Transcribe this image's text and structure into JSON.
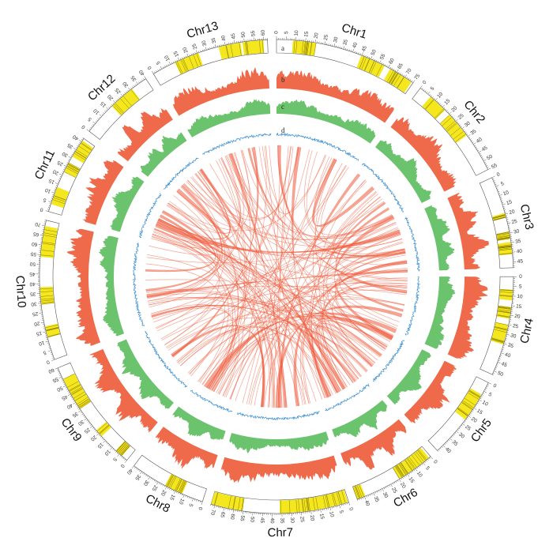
{
  "figure": {
    "ring_letters": [
      "a",
      "b",
      "c",
      "d"
    ],
    "colors": {
      "segment_outline": "#555555",
      "gene_band": "#f5e71e",
      "gene_line": "#8a7d00",
      "ring_b": "#ee6a4a",
      "ring_c": "#6cc36e",
      "ring_d": "#3a8ed0",
      "links": "#ee5b3c"
    },
    "chromosomes": [
      {
        "name": "Chr1",
        "length": 75,
        "tick_step": 5
      },
      {
        "name": "Chr2",
        "length": 55,
        "tick_step": 5
      },
      {
        "name": "Chr3",
        "length": 48,
        "tick_step": 5
      },
      {
        "name": "Chr4",
        "length": 52,
        "tick_step": 5
      },
      {
        "name": "Chr5",
        "length": 44,
        "tick_step": 5
      },
      {
        "name": "Chr6",
        "length": 44,
        "tick_step": 5
      },
      {
        "name": "Chr7",
        "length": 72,
        "tick_step": 5
      },
      {
        "name": "Chr8",
        "length": 40,
        "tick_step": 5
      },
      {
        "name": "Chr9",
        "length": 60,
        "tick_step": 5
      },
      {
        "name": "Chr10",
        "length": 73,
        "tick_step": 5
      },
      {
        "name": "Chr11",
        "length": 42,
        "tick_step": 5
      },
      {
        "name": "Chr12",
        "length": 40,
        "tick_step": 5
      },
      {
        "name": "Chr13",
        "length": 62,
        "tick_step": 5
      }
    ]
  }
}
